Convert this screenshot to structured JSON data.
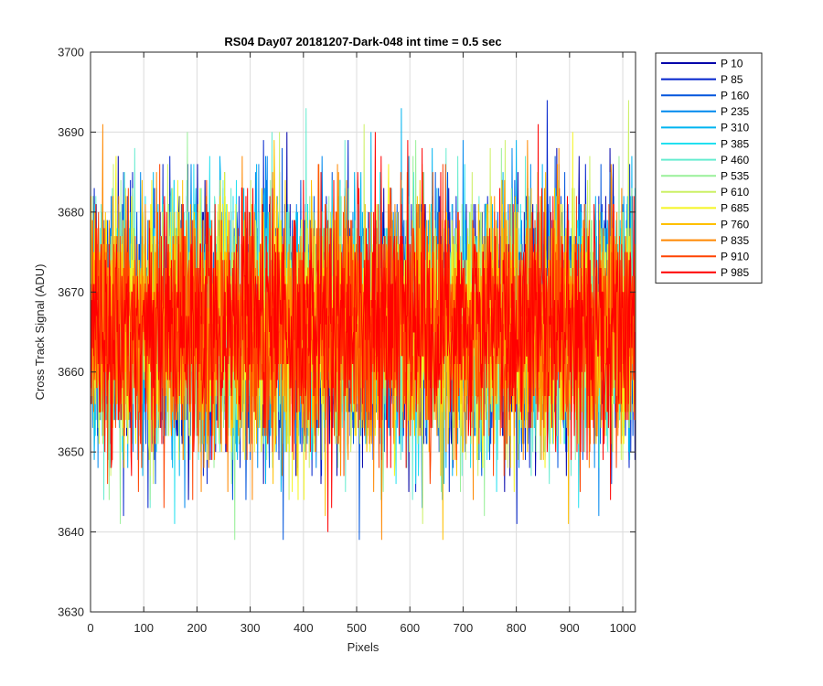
{
  "chart_data": {
    "type": "line",
    "title": "RS04 Day07 20181207-Dark-048 int time = 0.5 sec",
    "xlabel": "Pixels",
    "ylabel": "Cross Track Signal (ADU)",
    "xlim": [
      0,
      1024
    ],
    "ylim": [
      3630,
      3700
    ],
    "x_ticks": [
      "0",
      "100",
      "200",
      "300",
      "400",
      "500",
      "600",
      "700",
      "800",
      "900",
      "1000"
    ],
    "y_ticks": [
      "3630",
      "3640",
      "3650",
      "3660",
      "3670",
      "3680",
      "3690",
      "3700"
    ],
    "grid": true,
    "legend_position": "outside-right",
    "x_points": 1024,
    "noise_mean": 3666,
    "noise_min": 3639,
    "noise_max": 3694,
    "series": [
      {
        "name": "P 10",
        "color": "#0000aa",
        "mean": 3666
      },
      {
        "name": "P 85",
        "color": "#0022cc",
        "mean": 3666
      },
      {
        "name": "P 160",
        "color": "#0055dd",
        "mean": 3666
      },
      {
        "name": "P 235",
        "color": "#0088ee",
        "mean": 3666
      },
      {
        "name": "P 310",
        "color": "#00b4f0",
        "mean": 3666
      },
      {
        "name": "P 385",
        "color": "#22e0f0",
        "mean": 3666
      },
      {
        "name": "P 460",
        "color": "#66ecd0",
        "mean": 3666
      },
      {
        "name": "P 535",
        "color": "#99f099",
        "mean": 3666
      },
      {
        "name": "P 610",
        "color": "#ccf066",
        "mean": 3666
      },
      {
        "name": "P 685",
        "color": "#f5f522",
        "mean": 3666
      },
      {
        "name": "P 760",
        "color": "#ffc000",
        "mean": 3666
      },
      {
        "name": "P 835",
        "color": "#ff8800",
        "mean": 3666
      },
      {
        "name": "P 910",
        "color": "#ff4400",
        "mean": 3666
      },
      {
        "name": "P 985",
        "color": "#ff0000",
        "mean": 3666
      }
    ]
  }
}
